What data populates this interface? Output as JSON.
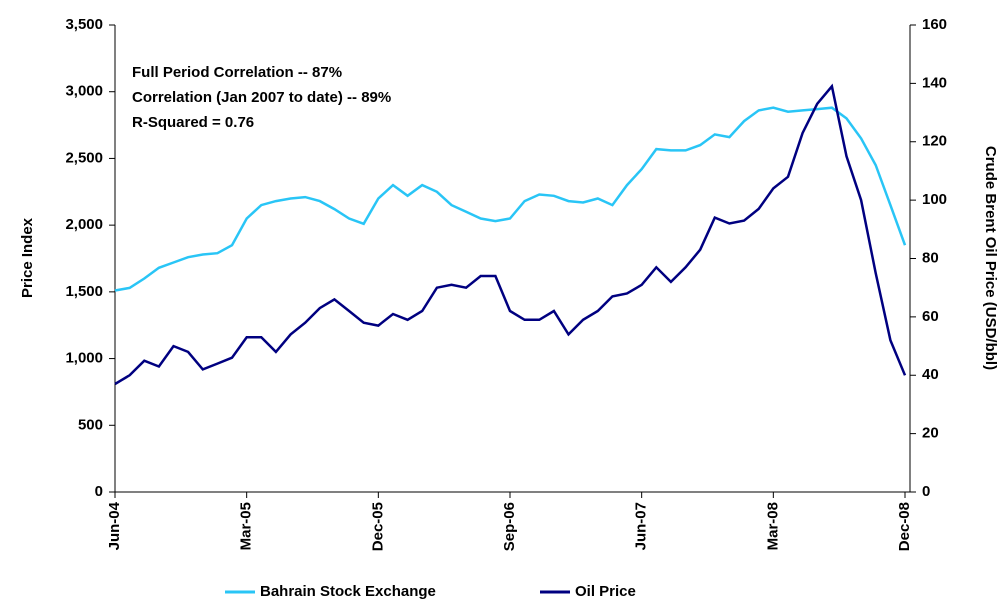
{
  "chart_data": {
    "type": "line",
    "categories": [
      "Jun-04",
      null,
      null,
      null,
      null,
      null,
      null,
      null,
      null,
      "Mar-05",
      null,
      null,
      null,
      null,
      null,
      null,
      null,
      null,
      "Dec-05",
      null,
      null,
      null,
      null,
      null,
      null,
      null,
      null,
      "Sep-06",
      null,
      null,
      null,
      null,
      null,
      null,
      null,
      null,
      "Jun-07",
      null,
      null,
      null,
      null,
      null,
      null,
      null,
      null,
      "Mar-08",
      null,
      null,
      null,
      null,
      null,
      null,
      null,
      null,
      "Dec-08"
    ],
    "series": [
      {
        "name": "Bahrain Stock Exchange",
        "color": "#29c5f6",
        "axis": "y",
        "values": [
          1510,
          1530,
          1600,
          1680,
          1720,
          1760,
          1780,
          1790,
          1850,
          2050,
          2150,
          2180,
          2200,
          2210,
          2180,
          2120,
          2050,
          2010,
          2200,
          2300,
          2220,
          2300,
          2250,
          2150,
          2100,
          2050,
          2030,
          2050,
          2180,
          2230,
          2220,
          2180,
          2170,
          2200,
          2150,
          2300,
          2420,
          2570,
          2560,
          2560,
          2600,
          2680,
          2660,
          2780,
          2860,
          2880,
          2850,
          2860,
          2870,
          2880,
          2800,
          2650,
          2450,
          2150,
          1850
        ]
      },
      {
        "name": "Oil Price",
        "color": "#000080",
        "axis": "y2",
        "values": [
          37,
          40,
          45,
          43,
          50,
          48,
          42,
          44,
          46,
          53,
          53,
          48,
          54,
          58,
          63,
          66,
          62,
          58,
          57,
          61,
          59,
          62,
          70,
          71,
          70,
          74,
          74,
          62,
          59,
          59,
          62,
          54,
          59,
          62,
          67,
          68,
          71,
          77,
          72,
          77,
          83,
          94,
          92,
          93,
          97,
          104,
          108,
          123,
          133,
          139,
          115,
          100,
          75,
          52,
          40
        ]
      }
    ],
    "ylabel": "Price Index",
    "y2label": "Crude Brent Oil Price (USD/bbl)",
    "ylim": [
      0,
      3500
    ],
    "yticks": [
      0,
      500,
      {
        "value": 1000,
        "label": "1,000"
      },
      {
        "value": 1500,
        "label": "1,500"
      },
      {
        "value": 2000,
        "label": "2,000"
      },
      {
        "value": 2500,
        "label": "2,500"
      },
      {
        "value": 3000,
        "label": "3,000"
      },
      {
        "value": 3500,
        "label": "3,500"
      }
    ],
    "y2lim": [
      0,
      160
    ],
    "y2ticks": [
      0,
      20,
      40,
      60,
      80,
      100,
      120,
      140,
      160
    ],
    "annotations": [
      "Full Period Correlation -- 87%",
      "Correlation (Jan 2007 to date) -- 89%",
      "R-Squared = 0.76"
    ],
    "legend": "bottom"
  }
}
